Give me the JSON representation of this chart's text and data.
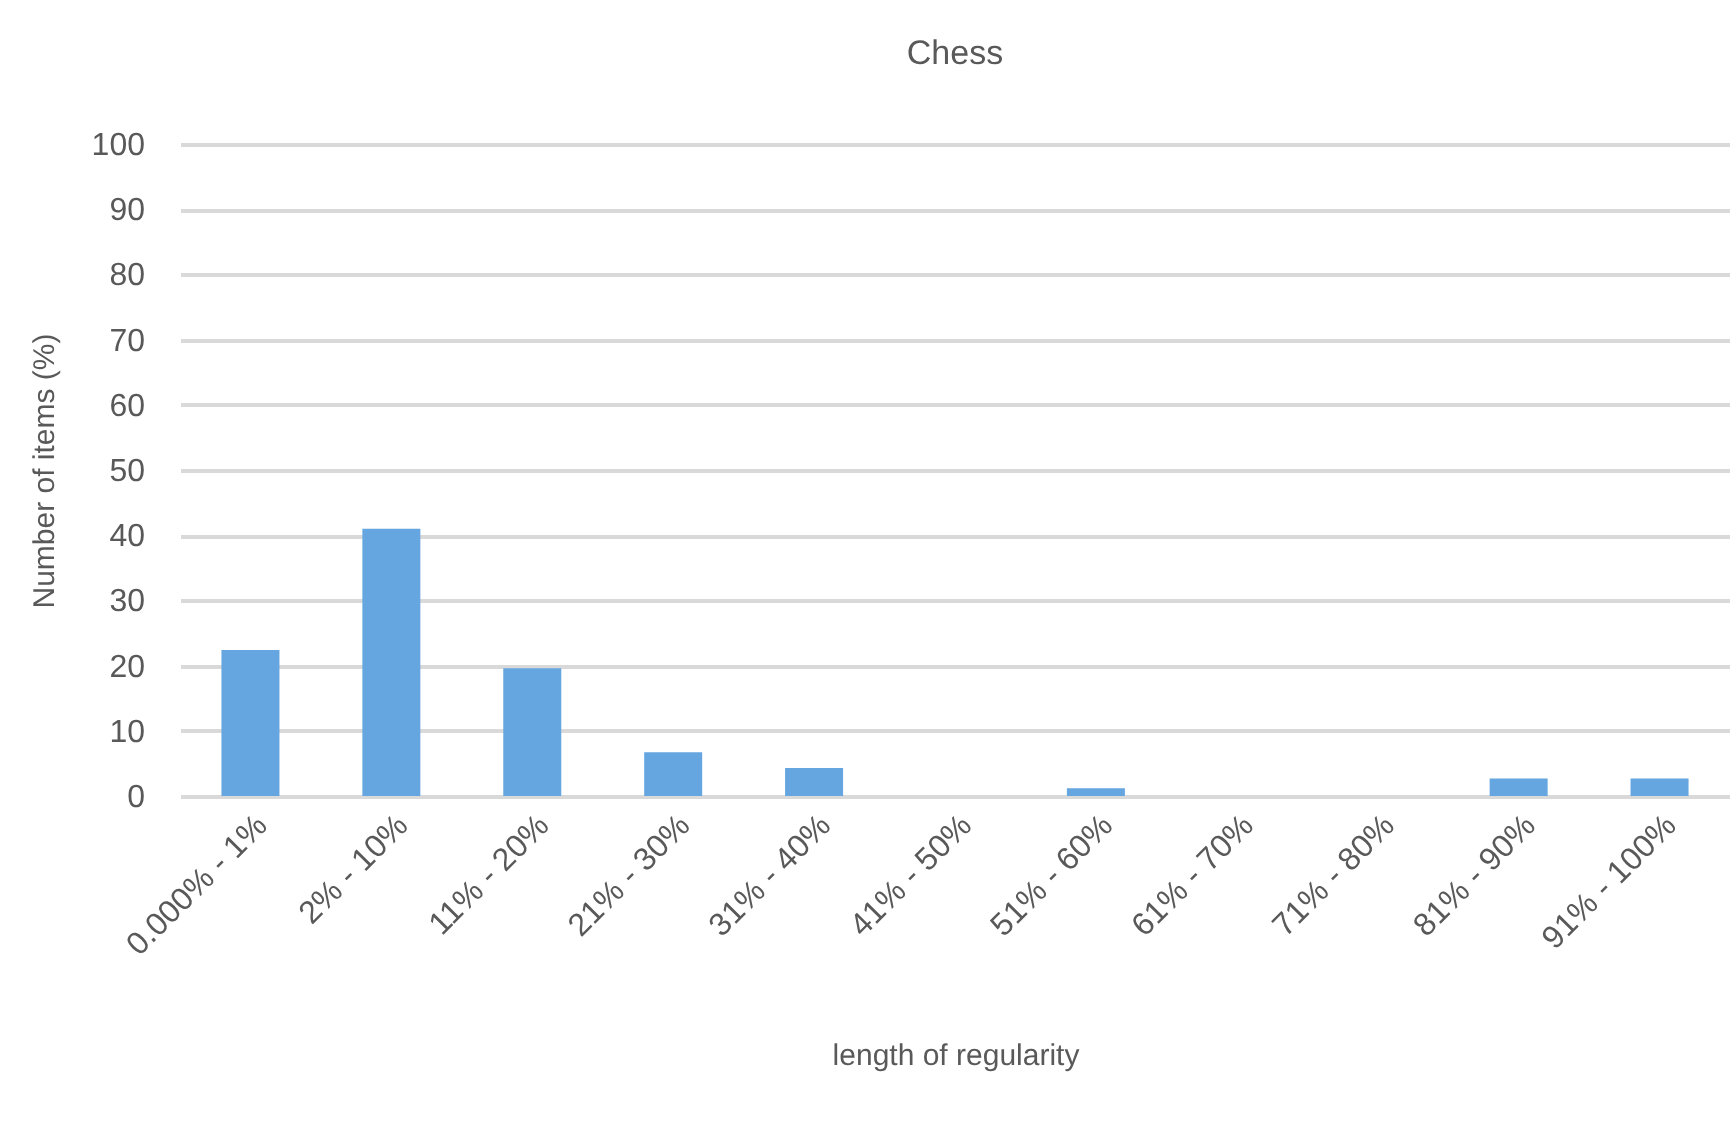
{
  "chart_data": {
    "type": "bar",
    "title": "Chess",
    "xlabel": "length of regularity",
    "ylabel": "Number of items (%)",
    "categories": [
      "0.000% - 1%",
      "2% - 10%",
      "11% - 20%",
      "21% - 30%",
      "31% - 40%",
      "41% - 50%",
      "51% - 60%",
      "61% - 70%",
      "71% - 80%",
      "81% - 90%",
      "91% - 100%"
    ],
    "values": [
      22.4,
      41,
      19.6,
      6.7,
      4.3,
      0,
      1.2,
      0,
      0,
      2.7,
      2.7
    ],
    "color": "#65a5e0",
    "ylim": [
      0,
      100
    ],
    "yticks": [
      0,
      10,
      20,
      30,
      40,
      50,
      60,
      70,
      80,
      90,
      100
    ],
    "grid": "y"
  }
}
